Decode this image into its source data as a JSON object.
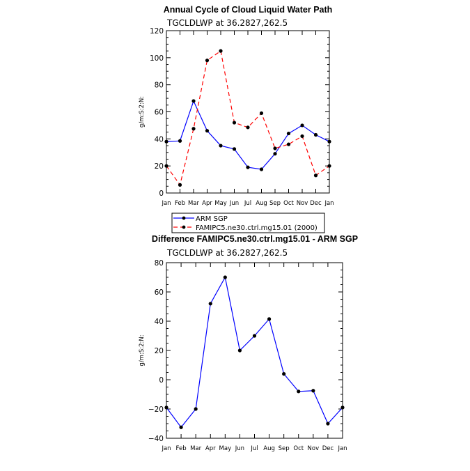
{
  "chart_data": [
    {
      "type": "line",
      "title": "Annual Cycle of Cloud Liquid Water Path",
      "subtitle": "TGCLDLWP  at  36.2827,262.5",
      "ylabel": "g/m:S:2:N:",
      "xlabel": "",
      "categories": [
        "Jan",
        "Feb",
        "Mar",
        "Apr",
        "May",
        "Jun",
        "Jul",
        "Aug",
        "Sep",
        "Oct",
        "Nov",
        "Dec",
        "Jan"
      ],
      "ylim": [
        0,
        120
      ],
      "yticks": [
        0,
        20,
        40,
        60,
        80,
        100,
        120
      ],
      "series": [
        {
          "name": "ARM SGP",
          "color": "#0000ff",
          "dash": "solid",
          "values": [
            38,
            38.5,
            68,
            46,
            35,
            32.5,
            19,
            17.5,
            29,
            44,
            50,
            43,
            38
          ]
        },
        {
          "name": "FAMIPC5.ne30.ctrl.mg15.01 (2000)",
          "color": "#ff0000",
          "dash": "dashed",
          "values": [
            20,
            6,
            47.5,
            98,
            105,
            52,
            48.5,
            59,
            33,
            36,
            42,
            13,
            20
          ]
        }
      ],
      "legend": [
        "ARM SGP",
        "FAMIPC5.ne30.ctrl.mg15.01 (2000)"
      ]
    },
    {
      "type": "line",
      "title": "Difference FAMIPC5.ne30.ctrl.mg15.01 - ARM SGP",
      "subtitle": "TGCLDLWP  at  36.2827,262.5",
      "ylabel": "g/m:S:2:N:",
      "xlabel": "",
      "categories": [
        "Jan",
        "Feb",
        "Mar",
        "Apr",
        "May",
        "Jun",
        "Jul",
        "Aug",
        "Sep",
        "Oct",
        "Nov",
        "Dec",
        "Jan"
      ],
      "ylim": [
        -40,
        80
      ],
      "yticks": [
        -40,
        -20,
        0,
        20,
        40,
        60,
        80
      ],
      "series": [
        {
          "name": "Difference",
          "color": "#0000ff",
          "dash": "solid",
          "values": [
            -19,
            -32.5,
            -20,
            52,
            70,
            20,
            30,
            41.5,
            4,
            -8,
            -7.5,
            -30,
            -19
          ]
        }
      ]
    }
  ]
}
